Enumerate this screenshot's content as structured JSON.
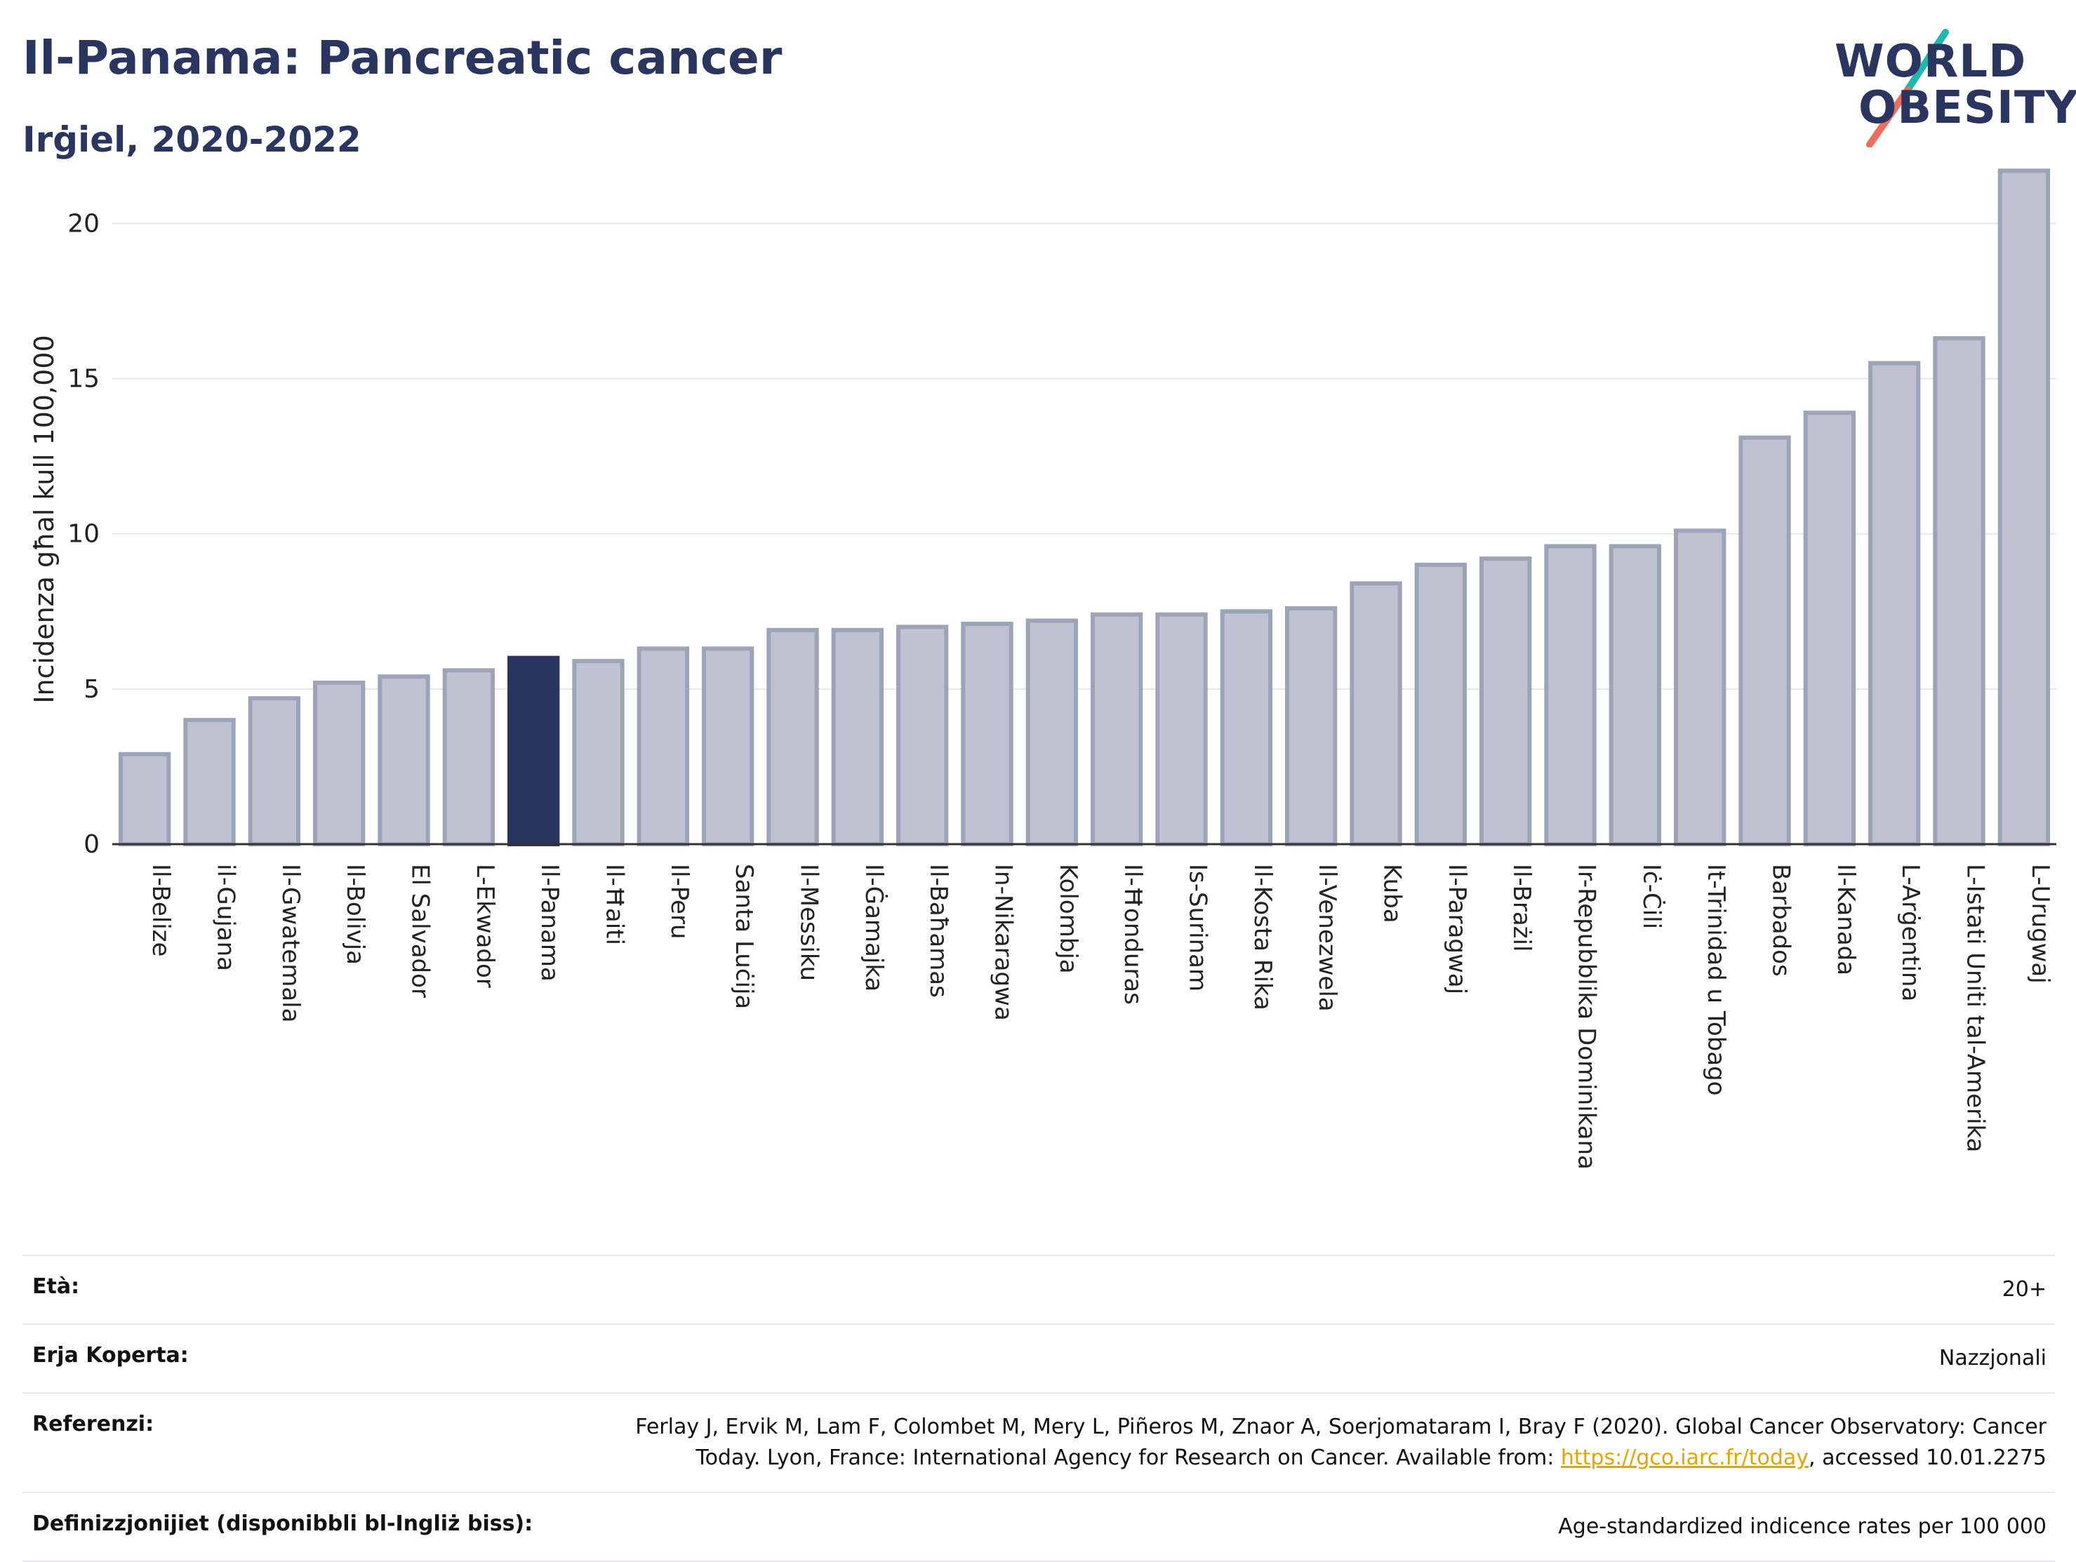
{
  "header": {
    "title": "Il-Panama: Pancreatic cancer",
    "subtitle": "Irġiel, 2020-2022"
  },
  "logo": {
    "line1": "WORLD",
    "line2": "OBESITY",
    "colors": {
      "text": "#2a3560",
      "slash_top": "#1fb8b0",
      "slash_bottom": "#ef6d5a"
    }
  },
  "colors": {
    "bar_default": "#bfc3d1",
    "bar_default_stroke": "#9ea4b8",
    "bar_highlight": "#2a3560",
    "grid": "#e6e6ee",
    "axis": "#333333"
  },
  "chart_data": {
    "type": "bar",
    "ylabel": "Incidenza għal kull 100,000",
    "xlabel": "",
    "ylim": [
      0,
      22
    ],
    "yticks": [
      0,
      5,
      10,
      15,
      20
    ],
    "grid": true,
    "highlight": "Il-Panama",
    "categories": [
      "Il-Belize",
      "il-Gujana",
      "Il-Gwatemala",
      "Il-Bolivja",
      "El Salvador",
      "L-Ekwador",
      "Il-Panama",
      "Il-Ħaiti",
      "Il-Peru",
      "Santa Luċija",
      "Il-Messiku",
      "Il-Ġamajka",
      "Il-Baħamas",
      "In-Nikaragwa",
      "Kolombja",
      "Il-Ħonduras",
      "Is-Surinam",
      "Il-Kosta Rika",
      "Il-Venezwela",
      "Kuba",
      "Il-Paragwaj",
      "Il-Brażil",
      "Ir-Repubblika Dominikana",
      "Iċ-Ċili",
      "It-Trinidad u Tobago",
      "Barbados",
      "Il-Kanada",
      "L-Arġentina",
      "L-Istati Uniti tal-Amerika",
      "L-Urugwaj"
    ],
    "values": [
      2.9,
      4.0,
      4.7,
      5.2,
      5.4,
      5.6,
      6.0,
      5.9,
      6.3,
      6.3,
      6.9,
      6.9,
      7.0,
      7.1,
      7.2,
      7.4,
      7.4,
      7.5,
      7.6,
      8.4,
      9.0,
      9.2,
      9.6,
      9.6,
      10.1,
      13.1,
      13.9,
      15.5,
      16.3,
      21.7
    ]
  },
  "info": {
    "rows": [
      {
        "key": "Età:",
        "value": "20+"
      },
      {
        "key": "Erja Koperta:",
        "value": "Nazzjonali"
      },
      {
        "key": "Referenzi:",
        "value_line1": "Ferlay J, Ervik M, Lam F, Colombet M, Mery L, Piñeros M, Znaor A, Soerjomataram I, Bray F (2020). Global Cancer Observatory: Cancer",
        "value_line2_pre": "Today. Lyon, France: International Agency for Research on Cancer. Available from: ",
        "link": "https://gco.iarc.fr/today",
        "value_line2_post": ", accessed 10.01.2275"
      },
      {
        "key": "Definizzjonijiet (disponibbli bl-Ingliż biss):",
        "value": "Age-standardized indicence rates per 100 000"
      }
    ]
  }
}
